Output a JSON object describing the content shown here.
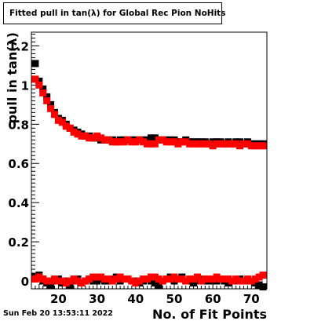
{
  "title": "Fitted pull in tan(λ) for Global Rec Pion NoHits",
  "timestamp": "Sun Feb 20 13:53:11 2022",
  "chart_data": {
    "type": "scatter",
    "title": "Fitted pull in tan(λ) for Global Rec Pion NoHits",
    "xlabel": "No. of Fit Points",
    "ylabel": "pull in tan(λ)",
    "xlim": [
      13,
      74
    ],
    "ylim": [
      -0.04,
      1.27
    ],
    "xticks": [
      20,
      30,
      40,
      50,
      60,
      70
    ],
    "yticks": [
      0,
      0.2,
      0.4,
      0.6,
      0.8,
      1,
      1.2
    ],
    "ytick_labels": [
      "0",
      "0.2",
      "0.4",
      "0.6",
      "0.8",
      "1",
      "1.2"
    ],
    "grid": false,
    "legend": "none",
    "series": [
      {
        "color": "#000000",
        "x": [
          14,
          15,
          16,
          17,
          18,
          19,
          20,
          21,
          22,
          23,
          24,
          25,
          26,
          27,
          28,
          29,
          30,
          31,
          32,
          33,
          34,
          35,
          36,
          37,
          38,
          39,
          40,
          41,
          42,
          43,
          44,
          45,
          46,
          47,
          48,
          49,
          50,
          51,
          52,
          53,
          54,
          55,
          56,
          57,
          58,
          59,
          60,
          61,
          62,
          63,
          64,
          65,
          66,
          67,
          68,
          69,
          70,
          71,
          72,
          73
        ],
        "y": [
          1.11,
          1.02,
          0.98,
          0.94,
          0.9,
          0.86,
          0.83,
          0.82,
          0.8,
          0.78,
          0.77,
          0.76,
          0.75,
          0.74,
          0.74,
          0.73,
          0.73,
          0.72,
          0.72,
          0.72,
          0.72,
          0.71,
          0.72,
          0.72,
          0.72,
          0.72,
          0.72,
          0.72,
          0.72,
          0.72,
          0.73,
          0.73,
          0.72,
          0.72,
          0.72,
          0.72,
          0.72,
          0.71,
          0.71,
          0.72,
          0.71,
          0.71,
          0.71,
          0.71,
          0.71,
          0.7,
          0.71,
          0.71,
          0.71,
          0.7,
          0.71,
          0.7,
          0.71,
          0.71,
          0.7,
          0.71,
          0.7,
          0.7,
          0.7,
          0.7
        ]
      },
      {
        "color": "#ff0000",
        "x": [
          14,
          15,
          16,
          17,
          18,
          19,
          20,
          21,
          22,
          23,
          24,
          25,
          26,
          27,
          28,
          29,
          30,
          31,
          32,
          33,
          34,
          35,
          36,
          37,
          38,
          39,
          40,
          41,
          42,
          43,
          44,
          45,
          46,
          47,
          48,
          49,
          50,
          51,
          52,
          53,
          54,
          55,
          56,
          57,
          58,
          59,
          60,
          61,
          62,
          63,
          64,
          65,
          66,
          67,
          68,
          69,
          70,
          71,
          72,
          73
        ],
        "y": [
          1.03,
          1.0,
          0.96,
          0.92,
          0.88,
          0.85,
          0.82,
          0.81,
          0.79,
          0.78,
          0.76,
          0.75,
          0.74,
          0.74,
          0.73,
          0.73,
          0.74,
          0.73,
          0.72,
          0.72,
          0.71,
          0.71,
          0.71,
          0.71,
          0.72,
          0.71,
          0.71,
          0.72,
          0.71,
          0.7,
          0.7,
          0.7,
          0.72,
          0.72,
          0.71,
          0.71,
          0.71,
          0.7,
          0.71,
          0.71,
          0.7,
          0.7,
          0.7,
          0.7,
          0.7,
          0.7,
          0.69,
          0.7,
          0.7,
          0.7,
          0.7,
          0.7,
          0.7,
          0.69,
          0.7,
          0.7,
          0.69,
          0.69,
          0.69,
          0.69
        ]
      },
      {
        "color": "#000000",
        "x": [
          14,
          15,
          16,
          17,
          18,
          19,
          20,
          21,
          22,
          23,
          24,
          25,
          26,
          27,
          28,
          29,
          30,
          31,
          32,
          33,
          34,
          35,
          36,
          37,
          38,
          39,
          40,
          41,
          42,
          43,
          44,
          45,
          46,
          47,
          48,
          49,
          50,
          51,
          52,
          53,
          54,
          55,
          56,
          57,
          58,
          59,
          60,
          61,
          62,
          63,
          64,
          65,
          66,
          67,
          68,
          69,
          70,
          71,
          72,
          73
        ],
        "y": [
          0.02,
          0.03,
          0.0,
          -0.01,
          -0.02,
          0.0,
          0.01,
          -0.01,
          0.0,
          -0.02,
          0.0,
          0.01,
          -0.01,
          0.0,
          0.01,
          0.0,
          0.0,
          0.01,
          0.0,
          0.0,
          0.01,
          0.02,
          0.0,
          0.01,
          0.01,
          0.0,
          0.0,
          -0.01,
          0.0,
          0.01,
          0.0,
          -0.01,
          -0.02,
          0.0,
          0.01,
          0.02,
          0.0,
          0.01,
          0.02,
          0.0,
          0.0,
          -0.01,
          0.0,
          0.01,
          0.0,
          0.0,
          0.01,
          0.0,
          0.01,
          0.0,
          -0.01,
          0.0,
          0.0,
          0.01,
          0.0,
          0.0,
          0.0,
          -0.01,
          -0.02,
          -0.03
        ]
      },
      {
        "color": "#ff0000",
        "x": [
          14,
          15,
          16,
          17,
          18,
          19,
          20,
          21,
          22,
          23,
          24,
          25,
          26,
          27,
          28,
          29,
          30,
          31,
          32,
          33,
          34,
          35,
          36,
          37,
          38,
          39,
          40,
          41,
          42,
          43,
          44,
          45,
          46,
          47,
          48,
          49,
          50,
          51,
          52,
          53,
          54,
          55,
          56,
          57,
          58,
          59,
          60,
          61,
          62,
          63,
          64,
          65,
          66,
          67,
          68,
          69,
          70,
          71,
          72,
          73
        ],
        "y": [
          0.01,
          0.02,
          0.01,
          0.0,
          0.0,
          0.01,
          0.0,
          0.0,
          -0.01,
          0.0,
          0.01,
          0.0,
          -0.01,
          0.0,
          0.01,
          0.02,
          0.02,
          0.02,
          0.01,
          0.01,
          0.0,
          0.01,
          0.02,
          0.01,
          0.01,
          0.0,
          -0.01,
          0.0,
          0.01,
          0.01,
          0.02,
          0.02,
          0.01,
          0.0,
          0.01,
          0.01,
          0.02,
          0.01,
          0.01,
          0.0,
          0.01,
          0.01,
          0.02,
          0.0,
          0.01,
          0.01,
          0.01,
          0.02,
          0.01,
          0.01,
          0.01,
          0.0,
          0.01,
          0.0,
          0.0,
          0.01,
          0.0,
          0.01,
          0.02,
          0.03
        ]
      }
    ]
  }
}
